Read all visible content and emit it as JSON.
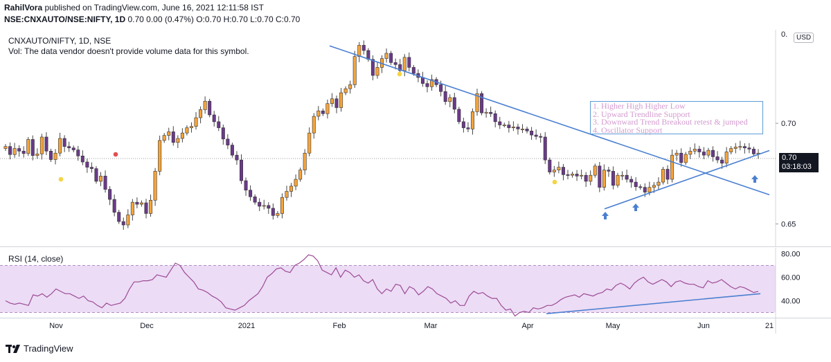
{
  "header": {
    "publisher": "RahilVora",
    "published_text": "published on TradingView.com, June 16, 2021 12:11:58 IST",
    "symbol_line": "NSE:CNXAUTO/NSE:NIFTY, 1D",
    "ohlc_text": "0.70 0.00 (0.47%) O:0.70 H:0.70 L:0.70 C:0.70"
  },
  "chart": {
    "legend": "CNXAUTO/NIFTY, 1D, NSE",
    "vol_note": "Vol: The data vendor doesn't provide volume data for this symbol.",
    "currency": "USD",
    "last_price": "0.70",
    "countdown": "03:18:03",
    "top_tick": "0.",
    "annotations": [
      "1. Higher High Higher Low",
      "2. Upward Trendline Support",
      "3. Downward Trend Breakout retest & jumped",
      "4. Oscillator Support"
    ]
  },
  "rsi_panel": {
    "label": "RSI (14, close)"
  },
  "footer": {
    "brand": "TradingView"
  },
  "colors": {
    "bull": "#f6a43a",
    "bear": "#6b3a8a",
    "trend": "#4a7fd1",
    "rsi": "#9c4a96",
    "rsi_band": "#ecdcf5"
  },
  "chart_data": [
    {
      "type": "candlestick",
      "title": "CNXAUTO/NIFTY, 1D, NSE",
      "x_labels": [
        "Nov",
        "Dec",
        "2021",
        "Feb",
        "Mar",
        "Apr",
        "May",
        "Jun",
        "21"
      ],
      "y_ticks": [
        "0.70",
        "0.65"
      ],
      "y_range": [
        0.6385,
        0.7465
      ],
      "close_series": [
        0.6885,
        0.6845,
        0.6875,
        0.6862,
        0.685,
        0.692,
        0.684,
        0.6848,
        0.6932,
        0.6862,
        0.682,
        0.6852,
        0.6925,
        0.6885,
        0.6878,
        0.6868,
        0.6838,
        0.6808,
        0.6782,
        0.6775,
        0.6712,
        0.6738,
        0.6672,
        0.6622,
        0.6558,
        0.6512,
        0.6495,
        0.6545,
        0.6608,
        0.6598,
        0.6605,
        0.6552,
        0.6618,
        0.6762,
        0.6915,
        0.694,
        0.6958,
        0.6905,
        0.6925,
        0.6952,
        0.6978,
        0.6985,
        0.7028,
        0.7068,
        0.711,
        0.7042,
        0.7008,
        0.6978,
        0.6922,
        0.6892,
        0.6842,
        0.6818,
        0.6715,
        0.6668,
        0.6635,
        0.6608,
        0.6588,
        0.6592,
        0.6578,
        0.6542,
        0.6552,
        0.6632,
        0.6662,
        0.6688,
        0.6722,
        0.6768,
        0.6852,
        0.6952,
        0.7035,
        0.7062,
        0.7048,
        0.7098,
        0.7122,
        0.7078,
        0.7152,
        0.7172,
        0.7192,
        0.7332,
        0.7388,
        0.7362,
        0.7318,
        0.7238,
        0.7278,
        0.7322,
        0.7348,
        0.7302,
        0.7292,
        0.7262,
        0.7328,
        0.7278,
        0.7248,
        0.7228,
        0.7198,
        0.7182,
        0.7218,
        0.7192,
        0.7158,
        0.7108,
        0.7128,
        0.707,
        0.7008,
        0.6978,
        0.6972,
        0.7058,
        0.7148,
        0.7052,
        0.7055,
        0.7048,
        0.7008,
        0.6992,
        0.6992,
        0.6978,
        0.6982,
        0.6972,
        0.6972,
        0.6962,
        0.6942,
        0.6935,
        0.6932,
        0.6818,
        0.6758,
        0.6768,
        0.6782,
        0.6745,
        0.6742,
        0.6748,
        0.6738,
        0.6742,
        0.6712,
        0.6742,
        0.6788,
        0.6682,
        0.6768,
        0.6762,
        0.6692,
        0.6742,
        0.6742,
        0.6722,
        0.6708,
        0.6685,
        0.6682,
        0.6658,
        0.6682,
        0.6692,
        0.6708,
        0.6772,
        0.6722,
        0.6842,
        0.6852,
        0.6805,
        0.6846,
        0.6862,
        0.6872,
        0.6858,
        0.6842,
        0.6866,
        0.6834,
        0.6818,
        0.6802,
        0.6858,
        0.6875,
        0.6882,
        0.6885,
        0.6878,
        0.6872,
        0.6848,
        0.6852
      ],
      "series": [
        {
          "name": "Downward trendline",
          "values": [
            [
              0.7385,
              "Jan 26"
            ],
            [
              0.6645,
              "Jun 21"
            ]
          ]
        },
        {
          "name": "Upward trendline support",
          "values": [
            [
              0.6575,
              "Apr 27"
            ],
            [
              0.6865,
              "Jun 21"
            ]
          ]
        }
      ],
      "marked_points": [
        "up arrow near May start",
        "up arrow in May",
        "up arrow in June"
      ]
    },
    {
      "type": "line",
      "title": "RSI (14, close)",
      "y_ticks": [
        "80.00",
        "60.00",
        "40.00"
      ],
      "ylim": [
        25,
        85
      ],
      "bands": [
        30,
        70
      ],
      "values": [
        40,
        38,
        37,
        38,
        37,
        36,
        45,
        44,
        46,
        43,
        46,
        50,
        48,
        46,
        46,
        44,
        42,
        44,
        40,
        39,
        36,
        34,
        38,
        36,
        37,
        38,
        42,
        50,
        56,
        56,
        57,
        57,
        58,
        62,
        61,
        60,
        66,
        72,
        70,
        64,
        60,
        56,
        50,
        49,
        47,
        44,
        42,
        39,
        34,
        33,
        32,
        34,
        36,
        40,
        43,
        46,
        52,
        60,
        63,
        67,
        68,
        65,
        64,
        70,
        72,
        75,
        79,
        78,
        74,
        66,
        64,
        62,
        68,
        60,
        66,
        64,
        60,
        62,
        57,
        55,
        58,
        50,
        46,
        50,
        48,
        54,
        53,
        46,
        52,
        50,
        45,
        48,
        52,
        50,
        46,
        44,
        42,
        38,
        40,
        36,
        36,
        44,
        48,
        46,
        47,
        44,
        42,
        42,
        36,
        32,
        33,
        27,
        30,
        31,
        30,
        34,
        33,
        34,
        36,
        36,
        38,
        41,
        43,
        44,
        45,
        43,
        46,
        45,
        44,
        46,
        47,
        50,
        49,
        53,
        55,
        53,
        50,
        55,
        58,
        60,
        56,
        54,
        56,
        58,
        56,
        52,
        56,
        57,
        55,
        54,
        54,
        52,
        51,
        57,
        55,
        56,
        58,
        55,
        52,
        50,
        52,
        51,
        49,
        47,
        48
      ]
    }
  ]
}
